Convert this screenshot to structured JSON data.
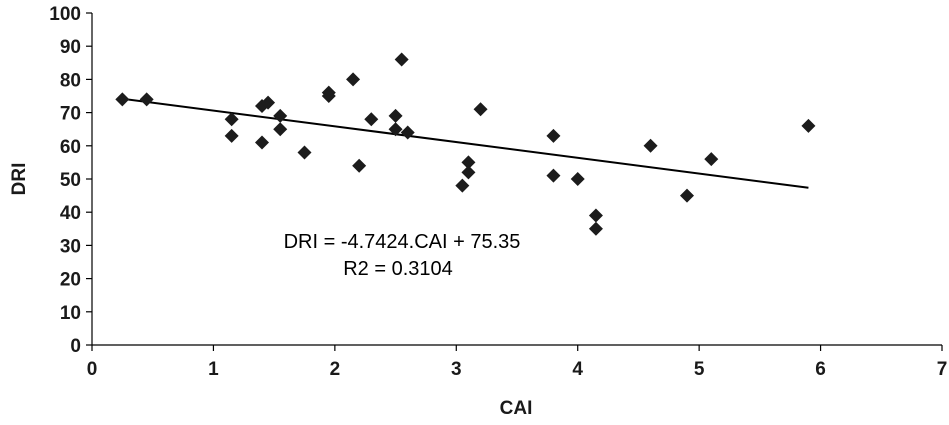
{
  "chart_data": {
    "type": "scatter",
    "xlabel": "CAI",
    "ylabel": "DRI",
    "xlim": [
      0,
      7
    ],
    "ylim": [
      0,
      100
    ],
    "x_ticks": [
      0,
      1,
      2,
      3,
      4,
      5,
      6,
      7
    ],
    "y_ticks": [
      0,
      10,
      20,
      30,
      40,
      50,
      60,
      70,
      80,
      90,
      100
    ],
    "grid": false,
    "legend": "none",
    "marker": "diamond",
    "marker_color": "#1c1c1c",
    "points": [
      {
        "x": 0.25,
        "y": 74
      },
      {
        "x": 0.45,
        "y": 74
      },
      {
        "x": 1.15,
        "y": 68
      },
      {
        "x": 1.15,
        "y": 63
      },
      {
        "x": 1.4,
        "y": 72
      },
      {
        "x": 1.45,
        "y": 73
      },
      {
        "x": 1.4,
        "y": 61
      },
      {
        "x": 1.55,
        "y": 69
      },
      {
        "x": 1.55,
        "y": 65
      },
      {
        "x": 1.75,
        "y": 58
      },
      {
        "x": 1.95,
        "y": 76
      },
      {
        "x": 1.95,
        "y": 75
      },
      {
        "x": 2.15,
        "y": 80
      },
      {
        "x": 2.2,
        "y": 54
      },
      {
        "x": 2.3,
        "y": 68
      },
      {
        "x": 2.5,
        "y": 69
      },
      {
        "x": 2.5,
        "y": 65
      },
      {
        "x": 2.55,
        "y": 86
      },
      {
        "x": 2.6,
        "y": 64
      },
      {
        "x": 3.05,
        "y": 48
      },
      {
        "x": 3.1,
        "y": 55
      },
      {
        "x": 3.1,
        "y": 52
      },
      {
        "x": 3.2,
        "y": 71
      },
      {
        "x": 3.8,
        "y": 63
      },
      {
        "x": 3.8,
        "y": 51
      },
      {
        "x": 4.0,
        "y": 50
      },
      {
        "x": 4.15,
        "y": 39
      },
      {
        "x": 4.15,
        "y": 35
      },
      {
        "x": 4.6,
        "y": 60
      },
      {
        "x": 4.9,
        "y": 45
      },
      {
        "x": 5.1,
        "y": 56
      },
      {
        "x": 5.9,
        "y": 66
      }
    ],
    "trendline": {
      "slope": -4.7424,
      "intercept": 75.35,
      "x_range": [
        0.25,
        5.9
      ]
    },
    "annotations": [
      "DRI = -4.7424.CAI + 75.35",
      "R2 = 0.3104"
    ]
  }
}
